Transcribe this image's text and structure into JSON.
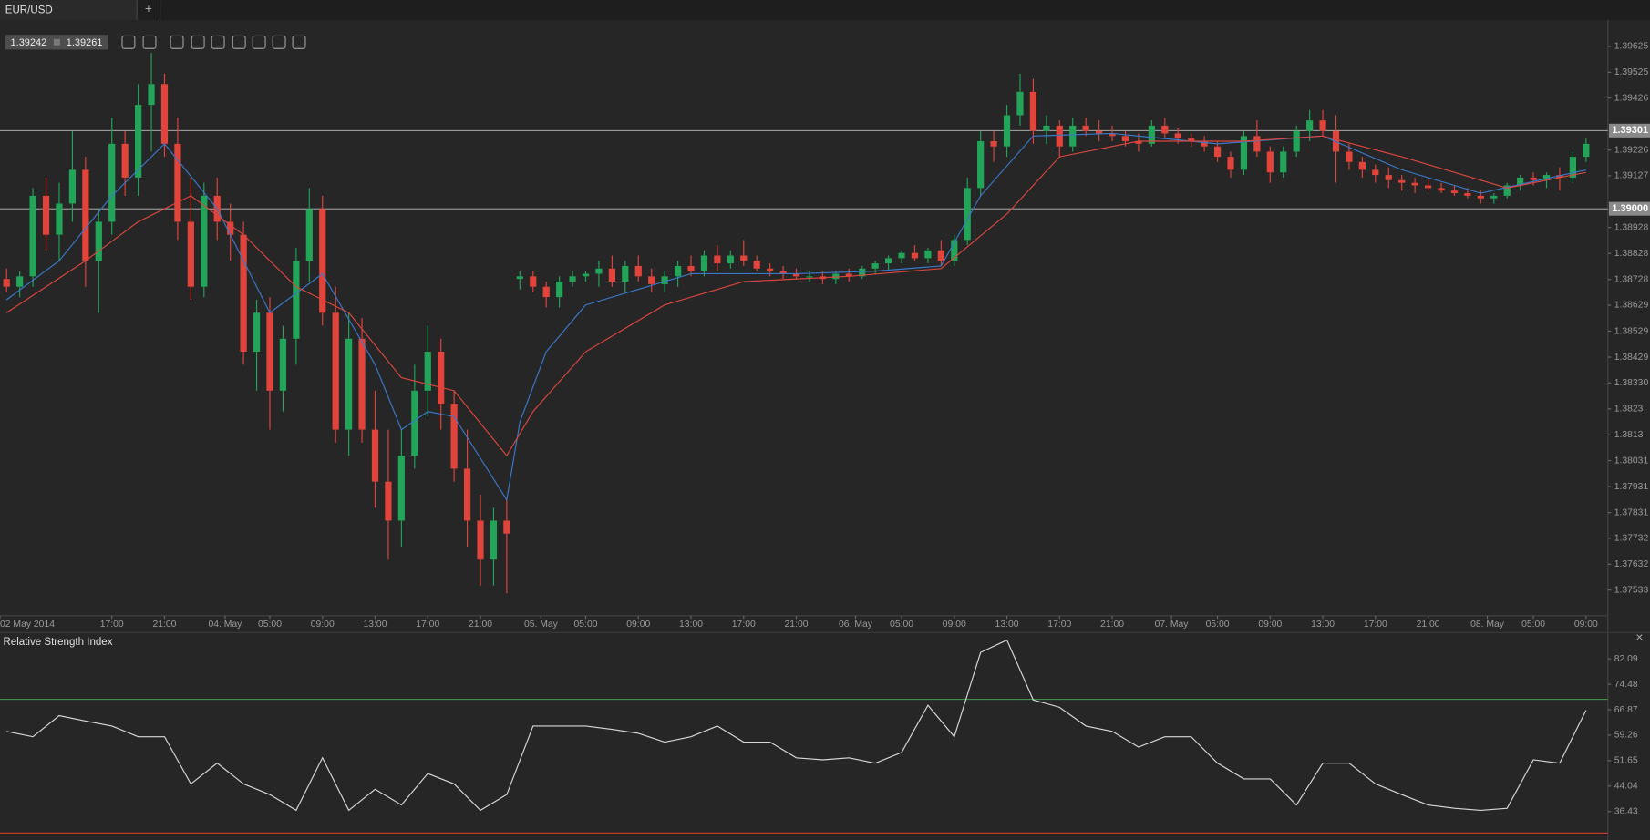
{
  "header": {
    "tab": "EUR/USD",
    "add": "+",
    "bid": "1.39242",
    "ask": "1.39261"
  },
  "chart_data": [
    {
      "type": "candlestick",
      "up_color": "#22a459",
      "down_color": "#e0443b",
      "xlim": [
        -0.5,
        121.66
      ],
      "xticks": [
        {
          "value": -0.5,
          "label": "02 May 2014"
        },
        {
          "value": 8,
          "label": "17:00"
        },
        {
          "value": 12,
          "label": "21:00"
        },
        {
          "value": 16.6,
          "label": "04. May"
        },
        {
          "value": 20,
          "label": "05:00"
        },
        {
          "value": 24,
          "label": "09:00"
        },
        {
          "value": 28,
          "label": "13:00"
        },
        {
          "value": 32,
          "label": "17:00"
        },
        {
          "value": 36,
          "label": "21:00"
        },
        {
          "value": 40.6,
          "label": "05. May"
        },
        {
          "value": 44,
          "label": "05:00"
        },
        {
          "value": 48,
          "label": "09:00"
        },
        {
          "value": 52,
          "label": "13:00"
        },
        {
          "value": 56,
          "label": "17:00"
        },
        {
          "value": 60,
          "label": "21:00"
        },
        {
          "value": 64.5,
          "label": "06. May"
        },
        {
          "value": 68,
          "label": "05:00"
        },
        {
          "value": 72,
          "label": "09:00"
        },
        {
          "value": 76,
          "label": "13:00"
        },
        {
          "value": 80,
          "label": "17:00"
        },
        {
          "value": 84,
          "label": "21:00"
        },
        {
          "value": 88.5,
          "label": "07. May"
        },
        {
          "value": 92,
          "label": "05:00"
        },
        {
          "value": 96,
          "label": "09:00"
        },
        {
          "value": 100,
          "label": "13:00"
        },
        {
          "value": 104,
          "label": "17:00"
        },
        {
          "value": 108,
          "label": "21:00"
        },
        {
          "value": 112.5,
          "label": "08. May"
        },
        {
          "value": 116,
          "label": "05:00"
        },
        {
          "value": 120,
          "label": "09:00"
        }
      ],
      "ylim": [
        1.37434,
        1.39722
      ],
      "yticks": [
        1.39625,
        1.39525,
        1.39426,
        1.39226,
        1.39127,
        1.38928,
        1.38828,
        1.38728,
        1.38629,
        1.38529,
        1.38429,
        {
          "value": 1.3833,
          "label": "1.38330"
        },
        1.3823,
        1.3813,
        1.38031,
        1.37931,
        1.37831,
        1.37732,
        1.37632,
        1.37533
      ],
      "levels": [
        1.39301,
        {
          "value": 1.39,
          "label": "1.39000"
        }
      ],
      "candles": [
        [
          1.3873,
          1.3877,
          1.3868,
          1.387
        ],
        [
          1.387,
          1.3876,
          1.3866,
          1.3874
        ],
        [
          1.3874,
          1.3908,
          1.387,
          1.3905
        ],
        [
          1.3905,
          1.3912,
          1.3884,
          1.389
        ],
        [
          1.389,
          1.391,
          1.388,
          1.3902
        ],
        [
          1.3902,
          1.393,
          1.3895,
          1.3915
        ],
        [
          1.3915,
          1.392,
          1.387,
          1.388
        ],
        [
          1.388,
          1.39,
          1.386,
          1.3895
        ],
        [
          1.3895,
          1.3935,
          1.389,
          1.3925
        ],
        [
          1.3925,
          1.393,
          1.3905,
          1.3912
        ],
        [
          1.3912,
          1.3948,
          1.3905,
          1.394
        ],
        [
          1.394,
          1.396,
          1.3922,
          1.3948
        ],
        [
          1.3948,
          1.3952,
          1.392,
          1.3925
        ],
        [
          1.3925,
          1.3935,
          1.3888,
          1.3895
        ],
        [
          1.3895,
          1.3912,
          1.3865,
          1.387
        ],
        [
          1.387,
          1.391,
          1.3866,
          1.3905
        ],
        [
          1.3905,
          1.3912,
          1.3888,
          1.3895
        ],
        [
          1.3895,
          1.3902,
          1.388,
          1.389
        ],
        [
          1.389,
          1.3895,
          1.384,
          1.3845
        ],
        [
          1.3845,
          1.3865,
          1.383,
          1.386
        ],
        [
          1.386,
          1.3866,
          1.3815,
          1.383
        ],
        [
          1.383,
          1.3855,
          1.3822,
          1.385
        ],
        [
          1.385,
          1.3885,
          1.384,
          1.388
        ],
        [
          1.388,
          1.3908,
          1.3872,
          1.39
        ],
        [
          1.39,
          1.3905,
          1.3855,
          1.386
        ],
        [
          1.386,
          1.387,
          1.381,
          1.3815
        ],
        [
          1.3815,
          1.386,
          1.3805,
          1.385
        ],
        [
          1.385,
          1.3858,
          1.381,
          1.3815
        ],
        [
          1.3815,
          1.383,
          1.3785,
          1.3795
        ],
        [
          1.3795,
          1.3815,
          1.3765,
          1.378
        ],
        [
          1.378,
          1.3815,
          1.377,
          1.3805
        ],
        [
          1.3805,
          1.384,
          1.38,
          1.383
        ],
        [
          1.383,
          1.3855,
          1.382,
          1.3845
        ],
        [
          1.3845,
          1.385,
          1.3815,
          1.3825
        ],
        [
          1.3825,
          1.383,
          1.3795,
          1.38
        ],
        [
          1.38,
          1.3815,
          1.377,
          1.378
        ],
        [
          1.378,
          1.379,
          1.3755,
          1.3765
        ],
        [
          1.3765,
          1.3785,
          1.3755,
          1.378
        ],
        [
          1.378,
          1.3788,
          1.3752,
          1.3775
        ],
        [
          1.3873,
          1.3876,
          1.3869,
          1.3874
        ],
        [
          1.3874,
          1.3876,
          1.3868,
          1.387
        ],
        [
          1.387,
          1.3872,
          1.3862,
          1.3866
        ],
        [
          1.3866,
          1.3874,
          1.3862,
          1.3872
        ],
        [
          1.3872,
          1.3876,
          1.387,
          1.3874
        ],
        [
          1.3874,
          1.3876,
          1.3872,
          1.3875
        ],
        [
          1.3875,
          1.388,
          1.387,
          1.3877
        ],
        [
          1.3877,
          1.3882,
          1.387,
          1.3872
        ],
        [
          1.3872,
          1.388,
          1.3868,
          1.3878
        ],
        [
          1.3878,
          1.3882,
          1.3872,
          1.3874
        ],
        [
          1.3874,
          1.3877,
          1.3868,
          1.3871
        ],
        [
          1.3871,
          1.3876,
          1.3868,
          1.3874
        ],
        [
          1.3874,
          1.388,
          1.387,
          1.3878
        ],
        [
          1.3878,
          1.3882,
          1.3874,
          1.3876
        ],
        [
          1.3876,
          1.3884,
          1.3874,
          1.3882
        ],
        [
          1.3882,
          1.3886,
          1.3876,
          1.3879
        ],
        [
          1.3879,
          1.3884,
          1.3877,
          1.3882
        ],
        [
          1.3882,
          1.3888,
          1.3878,
          1.388
        ],
        [
          1.388,
          1.3882,
          1.3876,
          1.3877
        ],
        [
          1.3877,
          1.3879,
          1.3874,
          1.3876
        ],
        [
          1.3876,
          1.3878,
          1.3873,
          1.3875
        ],
        [
          1.3875,
          1.3877,
          1.3873,
          1.3874
        ],
        [
          1.3874,
          1.3876,
          1.3872,
          1.3874
        ],
        [
          1.3874,
          1.3876,
          1.3871,
          1.3873
        ],
        [
          1.3873,
          1.3876,
          1.3871,
          1.3875
        ],
        [
          1.3875,
          1.3877,
          1.3872,
          1.3874
        ],
        [
          1.3874,
          1.3878,
          1.3873,
          1.3877
        ],
        [
          1.3877,
          1.388,
          1.3875,
          1.3879
        ],
        [
          1.3879,
          1.3882,
          1.3876,
          1.3881
        ],
        [
          1.3881,
          1.3884,
          1.3879,
          1.3883
        ],
        [
          1.3883,
          1.3886,
          1.388,
          1.3881
        ],
        [
          1.3881,
          1.3885,
          1.3879,
          1.3884
        ],
        [
          1.3884,
          1.3888,
          1.3878,
          1.388
        ],
        [
          1.388,
          1.389,
          1.3878,
          1.3888
        ],
        [
          1.3888,
          1.3912,
          1.3886,
          1.3908
        ],
        [
          1.3908,
          1.393,
          1.3905,
          1.3926
        ],
        [
          1.3926,
          1.393,
          1.3918,
          1.3924
        ],
        [
          1.3924,
          1.394,
          1.392,
          1.3936
        ],
        [
          1.3936,
          1.3952,
          1.3932,
          1.3945
        ],
        [
          1.3945,
          1.395,
          1.3925,
          1.393
        ],
        [
          1.393,
          1.3936,
          1.3925,
          1.3932
        ],
        [
          1.3932,
          1.3934,
          1.392,
          1.3924
        ],
        [
          1.3924,
          1.3935,
          1.3922,
          1.3932
        ],
        [
          1.3932,
          1.3935,
          1.3928,
          1.393
        ],
        [
          1.393,
          1.3934,
          1.3926,
          1.3929
        ],
        [
          1.3929,
          1.3932,
          1.3926,
          1.3928
        ],
        [
          1.3928,
          1.393,
          1.3924,
          1.3926
        ],
        [
          1.3926,
          1.3929,
          1.3922,
          1.3925
        ],
        [
          1.3925,
          1.3934,
          1.3924,
          1.3932
        ],
        [
          1.3932,
          1.3935,
          1.3927,
          1.3929
        ],
        [
          1.3929,
          1.3931,
          1.3925,
          1.3927
        ],
        [
          1.3927,
          1.3929,
          1.3924,
          1.3926
        ],
        [
          1.3926,
          1.3928,
          1.3922,
          1.3924
        ],
        [
          1.3924,
          1.3926,
          1.3918,
          1.392
        ],
        [
          1.392,
          1.3922,
          1.3912,
          1.3915
        ],
        [
          1.3915,
          1.393,
          1.3913,
          1.3928
        ],
        [
          1.3928,
          1.3934,
          1.392,
          1.3922
        ],
        [
          1.3922,
          1.3924,
          1.391,
          1.3914
        ],
        [
          1.3914,
          1.3924,
          1.3912,
          1.3922
        ],
        [
          1.3922,
          1.3932,
          1.392,
          1.393
        ],
        [
          1.393,
          1.3938,
          1.3926,
          1.3934
        ],
        [
          1.3934,
          1.3938,
          1.3928,
          1.393
        ],
        [
          1.393,
          1.3936,
          1.391,
          1.3922
        ],
        [
          1.3922,
          1.3925,
          1.3915,
          1.3918
        ],
        [
          1.3918,
          1.392,
          1.3912,
          1.3915
        ],
        [
          1.3915,
          1.3917,
          1.391,
          1.3913
        ],
        [
          1.3913,
          1.3916,
          1.3908,
          1.3911
        ],
        [
          1.3911,
          1.3913,
          1.3907,
          1.391
        ],
        [
          1.391,
          1.3912,
          1.3906,
          1.3909
        ],
        [
          1.3909,
          1.3911,
          1.3907,
          1.3908
        ],
        [
          1.3908,
          1.391,
          1.3906,
          1.3907
        ],
        [
          1.3907,
          1.3909,
          1.3905,
          1.3906
        ],
        [
          1.3906,
          1.3908,
          1.3904,
          1.3905
        ],
        [
          1.3905,
          1.3907,
          1.3902,
          1.3904
        ],
        [
          1.3904,
          1.3906,
          1.3902,
          1.3905
        ],
        [
          1.3905,
          1.391,
          1.3904,
          1.3909
        ],
        [
          1.3909,
          1.3913,
          1.3907,
          1.3912
        ],
        [
          1.3912,
          1.3914,
          1.3909,
          1.3911
        ],
        [
          1.3911,
          1.3914,
          1.3908,
          1.3913
        ],
        [
          1.3913,
          1.3916,
          1.3907,
          1.3912
        ],
        [
          1.3912,
          1.3922,
          1.391,
          1.392
        ],
        [
          1.392,
          1.3927,
          1.3918,
          1.3925
        ]
      ],
      "lines": [
        {
          "color": "#3a78c9",
          "x": [
            0,
            4,
            8,
            12,
            16,
            20,
            24,
            28,
            30,
            32,
            34,
            38,
            39,
            41,
            44,
            52,
            60,
            66,
            71,
            74,
            78,
            84,
            92,
            100,
            106,
            112,
            120
          ],
          "values": [
            1.3865,
            1.388,
            1.3905,
            1.3925,
            1.39,
            1.386,
            1.3875,
            1.384,
            1.3815,
            1.3822,
            1.382,
            1.3788,
            1.3818,
            1.3845,
            1.3863,
            1.3875,
            1.3875,
            1.3876,
            1.3878,
            1.3905,
            1.3928,
            1.3929,
            1.3925,
            1.3928,
            1.3915,
            1.3906,
            1.3915
          ]
        },
        {
          "color": "#d9463e",
          "x": [
            0,
            6,
            10,
            14,
            18,
            22,
            26,
            30,
            34,
            38,
            40,
            44,
            50,
            56,
            64,
            71,
            76,
            80,
            86,
            94,
            100,
            106,
            114,
            120
          ],
          "values": [
            1.386,
            1.388,
            1.3895,
            1.3905,
            1.389,
            1.387,
            1.386,
            1.3835,
            1.383,
            1.3805,
            1.3822,
            1.3845,
            1.3863,
            1.3872,
            1.3874,
            1.3877,
            1.3898,
            1.392,
            1.3926,
            1.3926,
            1.3928,
            1.392,
            1.3908,
            1.3914
          ]
        }
      ]
    },
    {
      "type": "line",
      "title": "Relative Strength Index",
      "close": "×",
      "color": "#d9d9d9",
      "xlim": [
        -0.5,
        121.66
      ],
      "ylim": [
        28.9,
        89.0
      ],
      "yticks": [
        82.09,
        74.48,
        66.87,
        59.26,
        51.65,
        44.04,
        36.43
      ],
      "levels": [
        {
          "value": 70,
          "color": "#3f8f4a"
        },
        {
          "value": 30,
          "color": "#c0392b"
        }
      ],
      "x": [
        0,
        2,
        4,
        6,
        8,
        10,
        12,
        14,
        16,
        18,
        20,
        22,
        24,
        26,
        28,
        30,
        32,
        34,
        36,
        38,
        40,
        42,
        44,
        46,
        48,
        50,
        52,
        54,
        56,
        58,
        60,
        62,
        64,
        66,
        68,
        70,
        72,
        74,
        76,
        78,
        80,
        82,
        84,
        86,
        88,
        90,
        92,
        94,
        96,
        98,
        100,
        102,
        104,
        106,
        108,
        110,
        112,
        114,
        116,
        118,
        120
      ],
      "values": [
        60.4,
        58.8,
        65.1,
        63.5,
        62.0,
        58.8,
        58.8,
        44.7,
        50.9,
        44.7,
        41.5,
        36.8,
        52.5,
        36.8,
        43.1,
        38.4,
        47.8,
        44.7,
        36.8,
        41.5,
        62.0,
        62.0,
        62.0,
        61.0,
        59.8,
        57.2,
        58.8,
        62.0,
        57.2,
        57.2,
        52.5,
        51.9,
        52.5,
        50.9,
        54.1,
        68.2,
        58.8,
        84.0,
        87.7,
        69.8,
        67.6,
        62.0,
        60.4,
        55.7,
        58.8,
        58.8,
        50.9,
        46.2,
        46.2,
        38.4,
        50.9,
        50.9,
        44.7,
        41.5,
        38.4,
        37.4,
        36.8,
        37.4,
        51.9,
        50.9,
        66.7
      ]
    }
  ]
}
